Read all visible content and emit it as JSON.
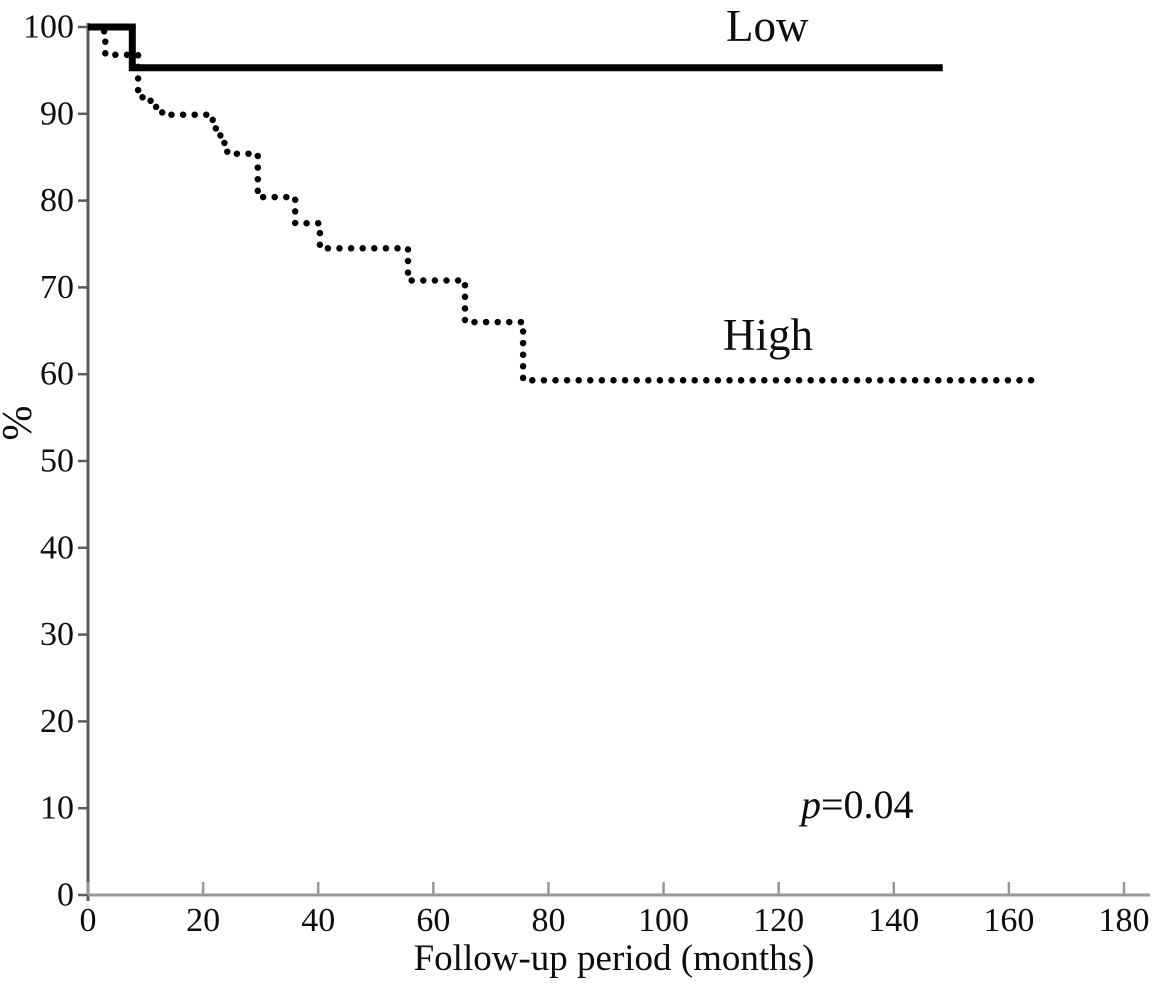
{
  "chart_data": {
    "type": "line",
    "subtype": "kaplan-meier-step",
    "title": "",
    "xlabel": "Follow-up period (months)",
    "ylabel": "%",
    "xlim": [
      0,
      180
    ],
    "ylim": [
      0,
      100
    ],
    "x_ticks": [
      0,
      20,
      40,
      60,
      80,
      100,
      120,
      140,
      160,
      180
    ],
    "y_ticks": [
      0,
      10,
      20,
      30,
      40,
      50,
      60,
      70,
      80,
      90,
      100
    ],
    "grid": false,
    "legend_position": "inline-labels",
    "annotation": {
      "p_symbol": "p",
      "p_rest": "=0.04"
    },
    "colors": {
      "curves": "#000000",
      "x_axis": "#989898",
      "y_axis": "#5a5a5a",
      "text": "#0d0d0d"
    },
    "series": [
      {
        "name": "Low",
        "line_style": "solid",
        "color": "#000000",
        "steps": [
          [
            0,
            100
          ],
          [
            7.7,
            95.3
          ]
        ],
        "end_time": 148.5
      },
      {
        "name": "High",
        "line_style": "dotted",
        "color": "#000000",
        "steps": [
          [
            2.8,
            99.5
          ],
          [
            3.0,
            96.8
          ],
          [
            8.7,
            91.9
          ],
          [
            9.8,
            91.5
          ],
          [
            11.0,
            90.8
          ],
          [
            12.0,
            90.2
          ],
          [
            12.9,
            89.9
          ],
          [
            21.5,
            89.3
          ],
          [
            22.2,
            88.3
          ],
          [
            23.0,
            87.3
          ],
          [
            23.7,
            86.4
          ],
          [
            24.2,
            85.4
          ],
          [
            29.5,
            80.4
          ],
          [
            36.0,
            77.4
          ],
          [
            40.3,
            74.5
          ],
          [
            55.6,
            70.8
          ],
          [
            65.5,
            66.0
          ],
          [
            75.6,
            59.3
          ]
        ],
        "end_time": 163.9
      }
    ]
  }
}
